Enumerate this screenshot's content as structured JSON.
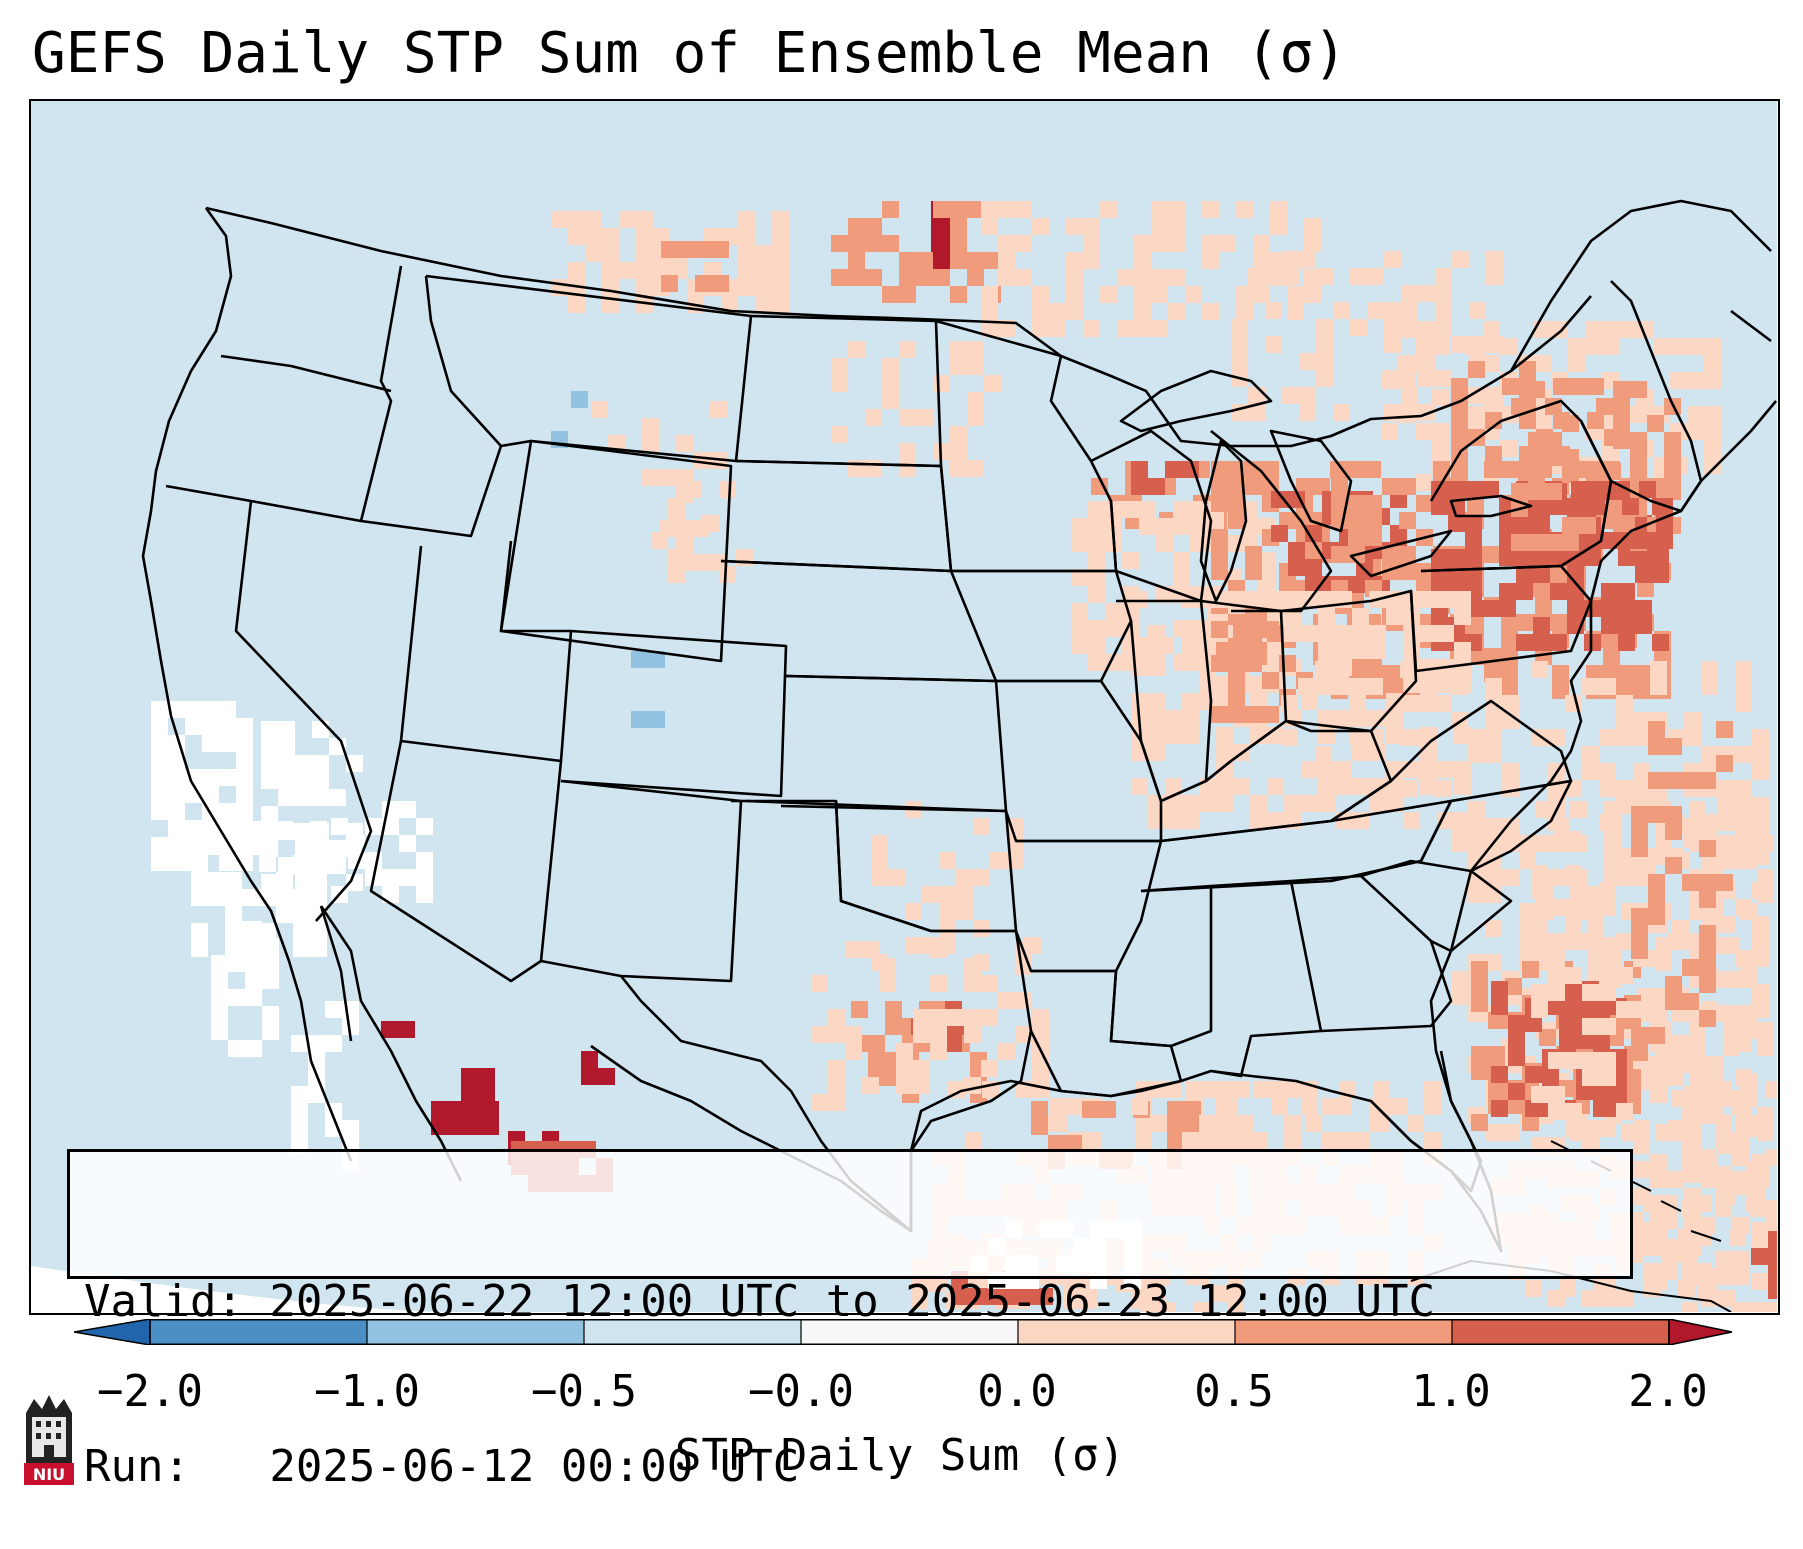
{
  "title": "GEFS Daily STP Sum of Ensemble Mean (σ)",
  "info": {
    "valid_line": "Valid: 2025-06-22 12:00 UTC to 2025-06-23 12:00 UTC",
    "run_line": "Run:   2025-06-12 00:00 UTC"
  },
  "colorbar": {
    "label": "STP Daily Sum (σ)",
    "tick_labels": [
      "−2.0",
      "−1.0",
      "−0.5",
      "−0.0",
      "0.0",
      "0.5",
      "1.0",
      "2.0"
    ],
    "bins": [
      {
        "from": -2.0,
        "to": -1.0,
        "color": "#4a8fc6"
      },
      {
        "from": -1.0,
        "to": -0.5,
        "color": "#91c3e0"
      },
      {
        "from": -0.5,
        "to": -0.0,
        "color": "#d1e5f0"
      },
      {
        "from": -0.0,
        "to": 0.0,
        "color": "#f7f7f7"
      },
      {
        "from": 0.0,
        "to": 0.5,
        "color": "#fbd7c4"
      },
      {
        "from": 0.5,
        "to": 1.0,
        "color": "#f09c7c"
      },
      {
        "from": 1.0,
        "to": 2.0,
        "color": "#d6604d"
      }
    ],
    "under_color": "#2166ac",
    "over_color": "#b2182b"
  },
  "map": {
    "background_color": "#d1e5f0",
    "domain": "Continental United States",
    "logo_text": "NIU"
  }
}
